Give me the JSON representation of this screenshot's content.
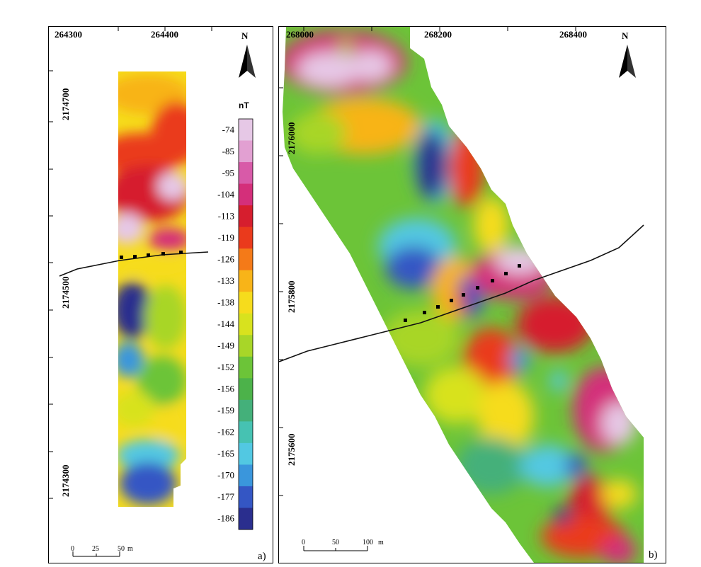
{
  "panel_a": {
    "x_ticks": [
      "264300",
      "264400"
    ],
    "y_ticks": [
      "2174700",
      "2174500",
      "2174300"
    ],
    "north": "N",
    "label": "a)",
    "scale": {
      "labels": [
        "0",
        "25",
        "50"
      ],
      "unit": "m"
    }
  },
  "panel_b": {
    "x_ticks": [
      "268000",
      "268200",
      "268400"
    ],
    "y_ticks": [
      "2176000",
      "2175800",
      "2175600"
    ],
    "north": "N",
    "label": "b)",
    "scale": {
      "labels": [
        "0",
        "50",
        "100"
      ],
      "unit": "m"
    }
  },
  "colorbar": {
    "unit": "nT",
    "ticks": [
      "-74",
      "-85",
      "-95",
      "-104",
      "-113",
      "-119",
      "-126",
      "-133",
      "-138",
      "-144",
      "-149",
      "-152",
      "-156",
      "-159",
      "-162",
      "-165",
      "-170",
      "-177",
      "-186"
    ],
    "colors": [
      "#e6c8e6",
      "#e2a0d2",
      "#d85aa8",
      "#d42f7a",
      "#d61e2e",
      "#ea3a1c",
      "#f47a18",
      "#f8b418",
      "#f6dc1c",
      "#d8e21e",
      "#a8d628",
      "#6cc438",
      "#4cb24a",
      "#44b07a",
      "#46c2b2",
      "#52c8e2",
      "#3a96dc",
      "#3456c4",
      "#2a2e8e"
    ]
  }
}
